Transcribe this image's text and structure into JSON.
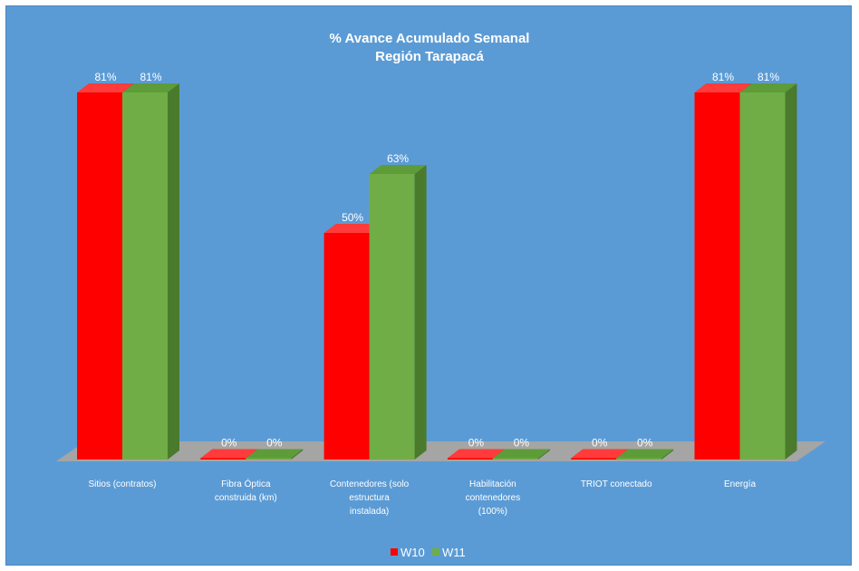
{
  "chart_data": {
    "type": "bar",
    "title": "% Avance Acumulado Semanal",
    "subtitle": "Región Tarapacá",
    "categories": [
      [
        "Sitios (contratos)"
      ],
      [
        "Fibra Óptica",
        "construida (km)"
      ],
      [
        "Contenedores (solo",
        "estructura",
        "instalada)"
      ],
      [
        "Habilitación",
        "contenedores",
        "(100%)"
      ],
      [
        "TRIOT conectado"
      ],
      [
        "Energía"
      ]
    ],
    "series": [
      {
        "name": "W10",
        "color": "#ff0000",
        "values": [
          81,
          0,
          50,
          0,
          0,
          81
        ],
        "labels": [
          "81%",
          "0%",
          "50%",
          "0%",
          "0%",
          "81%"
        ]
      },
      {
        "name": "W11",
        "color": "#70ad47",
        "values": [
          81,
          0,
          63,
          0,
          0,
          81
        ],
        "labels": [
          "81%",
          "0%",
          "63%",
          "0%",
          "0%",
          "81%"
        ]
      }
    ],
    "ylim": [
      0,
      100
    ],
    "grid": false,
    "legend": "bottom"
  }
}
